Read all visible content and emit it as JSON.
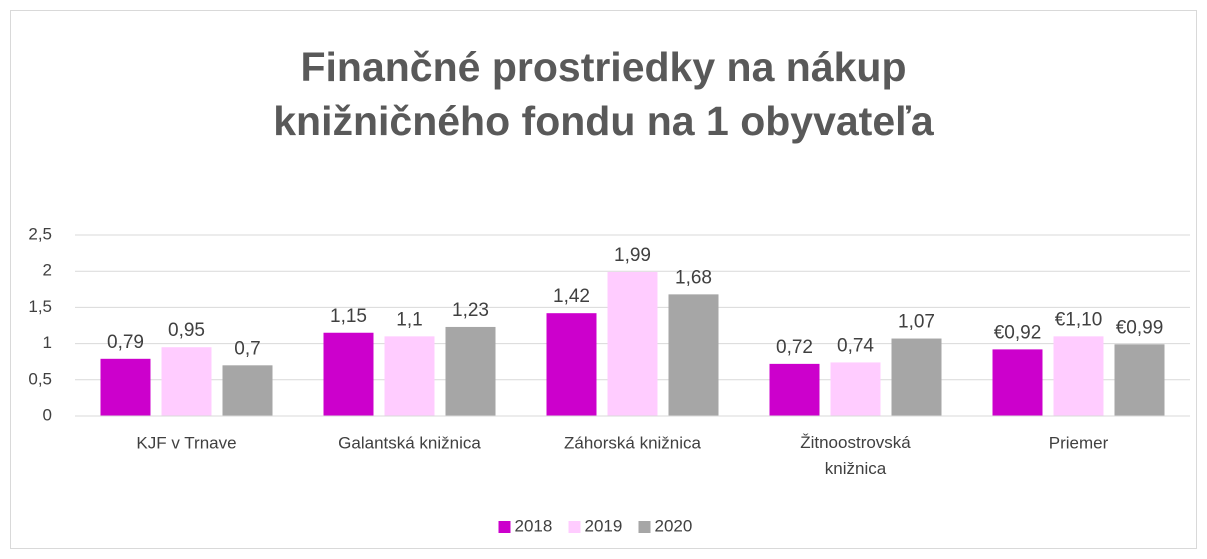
{
  "chart_data": {
    "type": "bar",
    "title": "Finančné prostriedky na nákup knižničného fondu na 1 obyvateľa",
    "categories": [
      "KJF v Trnave",
      "Galantská knižnica",
      "Záhorská knižnica",
      "Žitnoostrovská knižnica",
      "Priemer"
    ],
    "series": [
      {
        "name": "2018",
        "color": "#cc00cc",
        "values": [
          0.79,
          1.15,
          1.42,
          0.72,
          0.92
        ],
        "value_labels": [
          "0,79",
          "1,15",
          "1,42",
          "0,72",
          "€0,92"
        ]
      },
      {
        "name": "2019",
        "color": "#ffccff",
        "values": [
          0.95,
          1.1,
          1.99,
          0.74,
          1.1
        ],
        "value_labels": [
          "0,95",
          "1,1",
          "1,99",
          "0,74",
          "€1,10"
        ]
      },
      {
        "name": "2020",
        "color": "#a6a6a6",
        "values": [
          0.7,
          1.23,
          1.68,
          1.07,
          0.99
        ],
        "value_labels": [
          "0,7",
          "1,23",
          "1,68",
          "1,07",
          "€0,99"
        ]
      }
    ],
    "ylim": [
      0,
      2.5
    ],
    "yticks": [
      0,
      {
        "value": 0.5,
        "label": "0,5"
      },
      1,
      {
        "value": 1.5,
        "label": "1,5"
      },
      2,
      {
        "value": 2.5,
        "label": "2,5"
      }
    ],
    "grid": true,
    "legend": "bottom"
  }
}
